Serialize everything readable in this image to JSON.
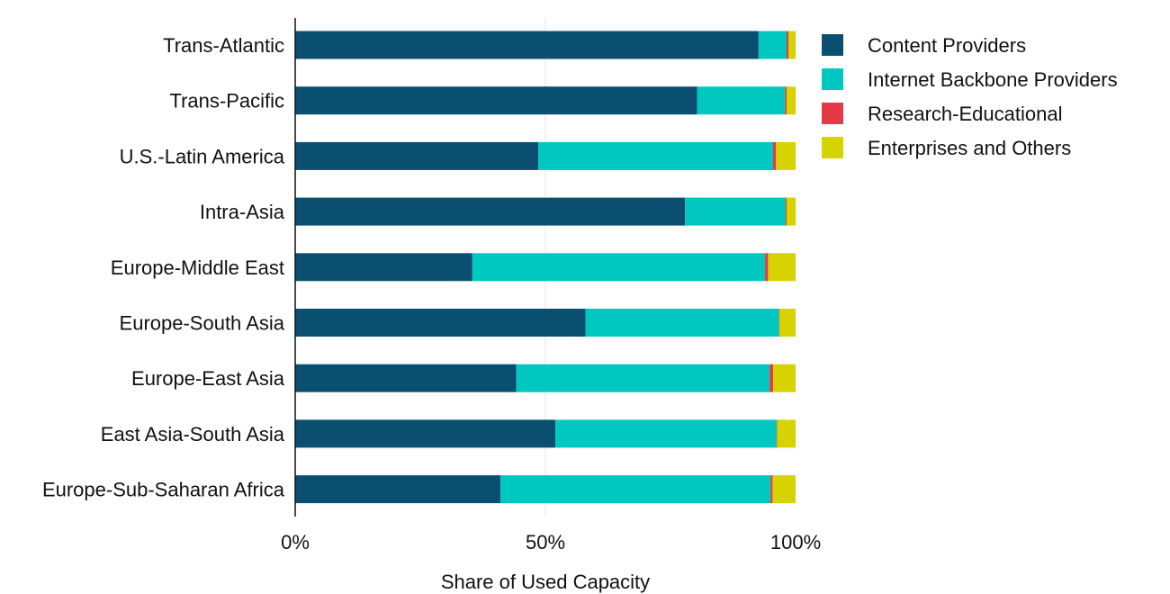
{
  "chart_data": {
    "type": "bar",
    "orientation": "horizontal",
    "stacked": true,
    "categories": [
      "Trans-Atlantic",
      "Trans-Pacific",
      "U.S.-Latin America",
      "Intra-Asia",
      "Europe-Middle East",
      "Europe-South Asia",
      "Europe-East Asia",
      "East Asia-South Asia",
      "Europe-Sub-Saharan Africa"
    ],
    "series": [
      {
        "name": "Content Providers",
        "color": "#0a4f70",
        "values": [
          92.6,
          80.3,
          48.6,
          77.9,
          35.4,
          58.0,
          44.2,
          52.0,
          41.0
        ]
      },
      {
        "name": "Internet Backbone Providers",
        "color": "#00c8c0",
        "values": [
          5.6,
          17.6,
          46.9,
          20.1,
          58.5,
          38.7,
          50.6,
          44.2,
          54.0
        ]
      },
      {
        "name": "Research-Educational",
        "color": "#e63946",
        "values": [
          0.4,
          0.3,
          0.6,
          0.2,
          0.6,
          0.1,
          0.7,
          0.1,
          0.4
        ]
      },
      {
        "name": "Enterprises and Others",
        "color": "#d6d300",
        "values": [
          1.4,
          1.8,
          3.9,
          1.8,
          5.5,
          3.2,
          4.5,
          3.7,
          4.6
        ]
      }
    ],
    "xlim": [
      0,
      100
    ],
    "xticks": [
      "0%",
      "50%",
      "100%"
    ],
    "xlabel": "Share of Used Capacity",
    "ylabel": "",
    "title": "",
    "grid": "vertical-at-50",
    "legend_position": "top-right"
  }
}
